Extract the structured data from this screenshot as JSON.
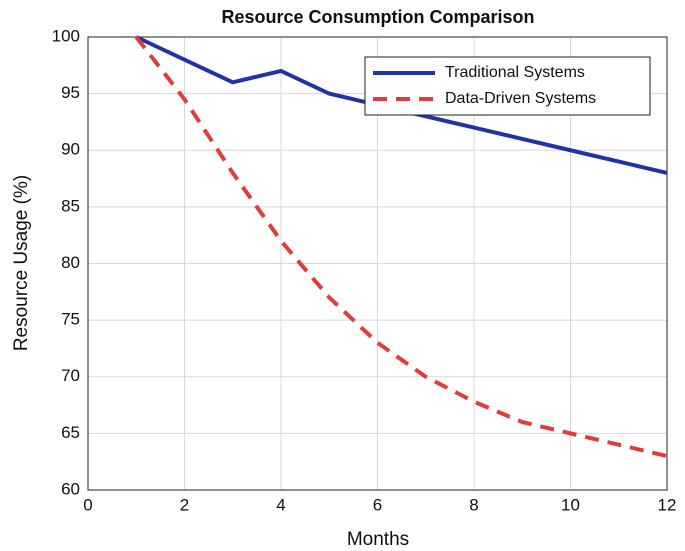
{
  "chart_data": {
    "type": "line",
    "title": "Resource Consumption Comparison",
    "x_label": "Months",
    "y_label": "Resource Usage (%)",
    "x": [
      1,
      2,
      3,
      4,
      5,
      6,
      7,
      8,
      9,
      10,
      11,
      12
    ],
    "series": [
      {
        "name": "Traditional Systems",
        "color": "#2233aa",
        "style": "solid",
        "values": [
          100,
          98,
          96,
          97,
          95,
          94,
          93,
          92,
          91,
          90,
          89,
          88
        ]
      },
      {
        "name": "Data-Driven Systems",
        "color": "#e03c3c",
        "style": "dashed",
        "values": [
          100,
          94.5,
          88,
          82,
          77,
          73,
          70,
          67.8,
          66,
          65,
          64,
          63
        ]
      }
    ],
    "xlim": [
      0,
      12
    ],
    "xticks": [
      0,
      2,
      4,
      6,
      8,
      10,
      12
    ],
    "ylim": [
      60,
      100
    ],
    "yticks": [
      60,
      65,
      70,
      75,
      80,
      85,
      90,
      95,
      100
    ],
    "grid": true,
    "legend": "upper right"
  }
}
